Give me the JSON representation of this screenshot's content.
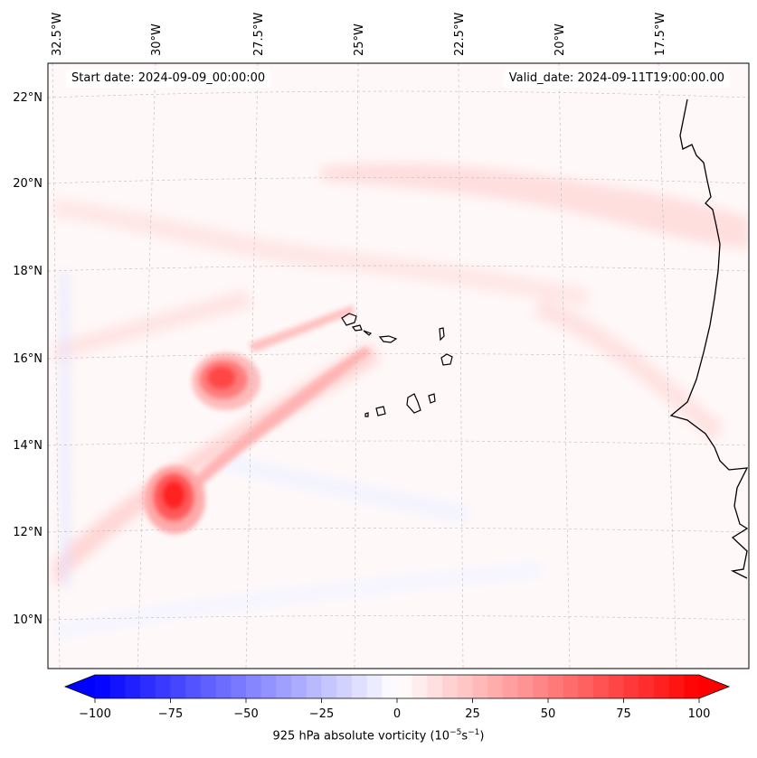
{
  "header": {
    "start_date": "Start date: 2024-09-09_00:00:00",
    "valid_date": "Valid_date: 2024-09-11T19:00:00.00"
  },
  "map": {
    "lon_labels": [
      "32.5°W",
      "30°W",
      "27.5°W",
      "25°W",
      "22.5°W",
      "20°W",
      "17.5°W"
    ],
    "lat_labels": [
      "22°N",
      "20°N",
      "18°N",
      "16°N",
      "14°N",
      "12°N",
      "10°N"
    ],
    "field": "925 hPa absolute vorticity",
    "features": [
      "vorticity-max-west",
      "vorticity-max-southwest",
      "cape-verde-islands",
      "west-africa-coastline"
    ]
  },
  "colorbar": {
    "ticks": [
      "−100",
      "−75",
      "−50",
      "−25",
      "0",
      "25",
      "50",
      "75",
      "100"
    ],
    "label_main": "925 hPa absolute vorticity (10",
    "label_exp1": "−5",
    "label_mid": "s",
    "label_exp2": "−1",
    "label_end": ")",
    "low_color": "#0000ff",
    "high_color": "#ff0000"
  }
}
